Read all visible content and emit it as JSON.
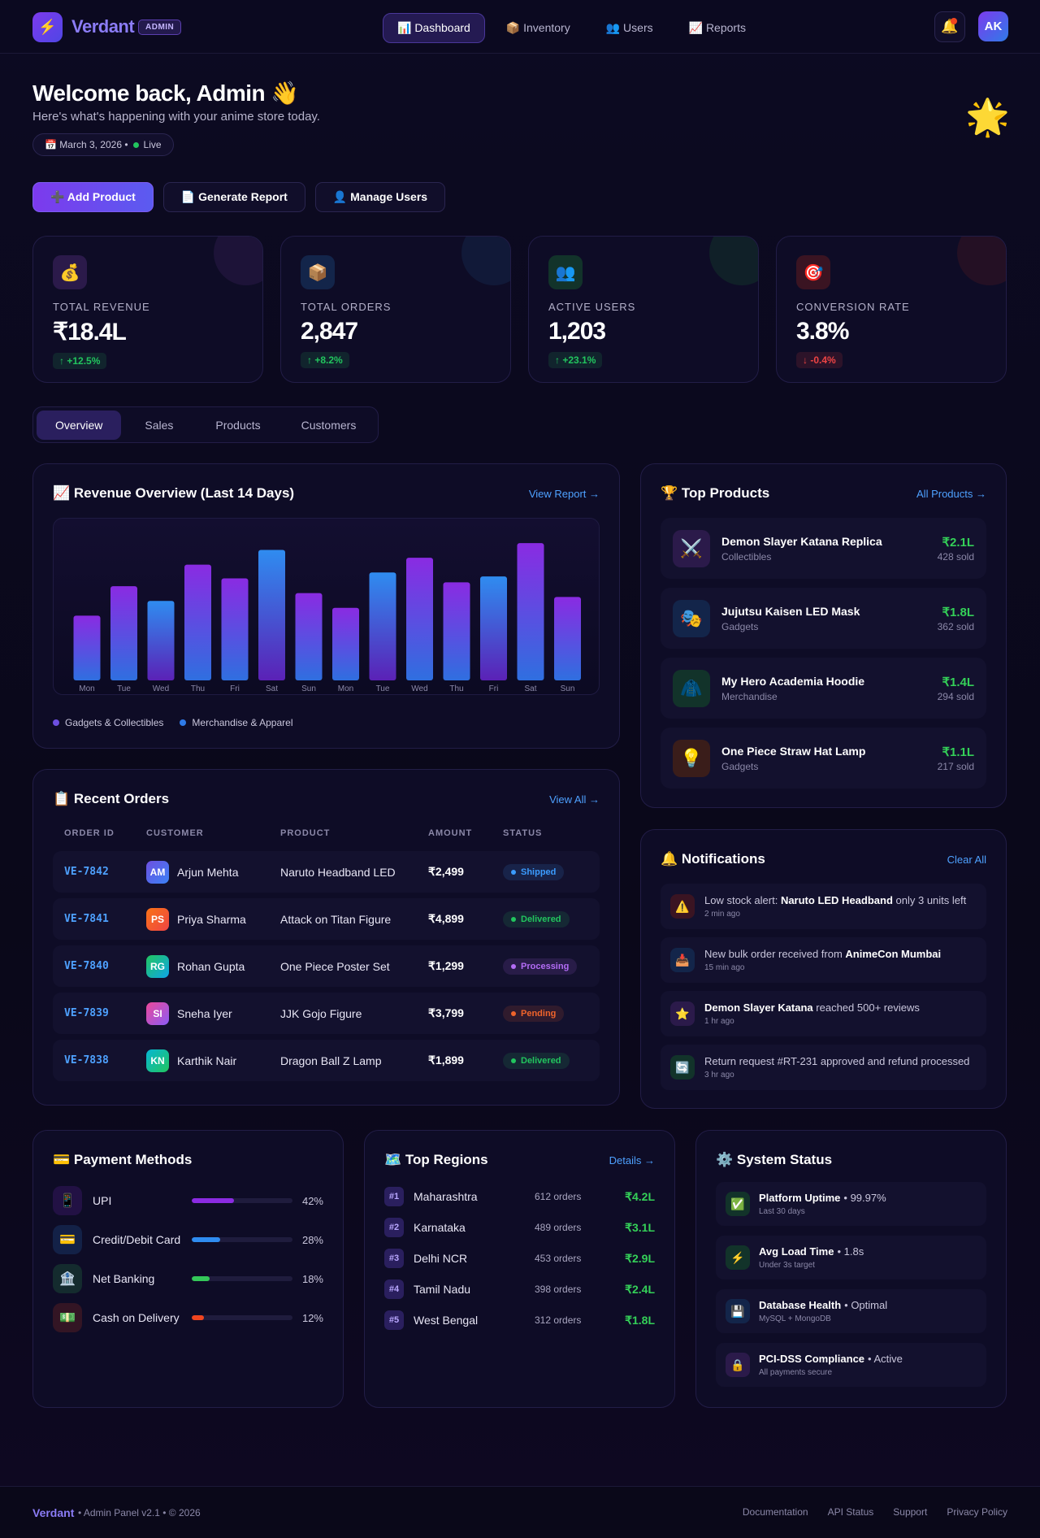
{
  "nav": {
    "logo": "⚡",
    "brand": "Verdant",
    "badge": "ADMIN",
    "links": [
      "📊 Dashboard",
      "📦 Inventory",
      "👥 Users",
      "📈 Reports"
    ],
    "bell": "🔔",
    "avatar": "AK"
  },
  "hero": {
    "title": "Welcome back, Admin 👋",
    "subtitle": "Here's what's happening with your anime store today.",
    "date": "📅 March 3, 2026 •",
    "status": "Live",
    "decoration": "🌟"
  },
  "actions": [
    "➕ Add Product",
    "📄 Generate Report",
    "👤 Manage Users"
  ],
  "stats": [
    {
      "icon": "💰",
      "label": "TOTAL REVENUE",
      "value": "₹18.4L",
      "change": "↑ +12.5%",
      "color": "#22c55e"
    },
    {
      "icon": "📦",
      "label": "TOTAL ORDERS",
      "value": "2,847",
      "change": "↑ +8.2%",
      "color": "#22c55e"
    },
    {
      "icon": "👥",
      "label": "ACTIVE USERS",
      "value": "1,203",
      "change": "↑ +23.1%",
      "color": "#22c55e"
    },
    {
      "icon": "🎯",
      "label": "CONVERSION RATE",
      "value": "3.8%",
      "change": "↓ -0.4%",
      "color": "#ef4444"
    }
  ],
  "tabs": [
    "Overview",
    "Sales",
    "Products",
    "Customers"
  ],
  "revenue": {
    "link": "View Report →"
  },
  "chart_data": {
    "type": "bar",
    "title": "📈 Revenue Overview (Last 14 Days)",
    "categories": [
      "Mon",
      "Tue",
      "Wed",
      "Thu",
      "Fri",
      "Sat",
      "Sun",
      "Mon",
      "Tue",
      "Wed",
      "Thu",
      "Fri",
      "Sat",
      "Sun"
    ],
    "values": [
      66,
      96,
      81,
      118,
      104,
      133,
      89,
      74,
      110,
      125,
      100,
      106,
      140,
      85
    ],
    "ylim": [
      0,
      150
    ],
    "legend": [
      {
        "name": "Gadgets & Collectibles",
        "color": "#6d4fe0"
      },
      {
        "name": "Merchandise & Apparel",
        "color": "#2f7be8"
      }
    ]
  },
  "orders": {
    "title": "📋 Recent Orders",
    "link": "View All →",
    "columns": [
      "ORDER ID",
      "CUSTOMER",
      "PRODUCT",
      "AMOUNT",
      "STATUS"
    ],
    "rows": [
      {
        "id": "VE-7842",
        "initials": "AM",
        "customer": "Arjun Mehta",
        "product": "Naruto Headband LED",
        "amount": "₹2,499",
        "status": "Shipped",
        "color": "#3b9cff"
      },
      {
        "id": "VE-7841",
        "initials": "PS",
        "customer": "Priya Sharma",
        "product": "Attack on Titan Figure",
        "amount": "₹4,899",
        "status": "Delivered",
        "color": "#22c55e"
      },
      {
        "id": "VE-7840",
        "initials": "RG",
        "customer": "Rohan Gupta",
        "product": "One Piece Poster Set",
        "amount": "₹1,299",
        "status": "Processing",
        "color": "#b36cf5"
      },
      {
        "id": "VE-7839",
        "initials": "SI",
        "customer": "Sneha Iyer",
        "product": "JJK Gojo Figure",
        "amount": "₹3,799",
        "status": "Pending",
        "color": "#f0642b"
      },
      {
        "id": "VE-7838",
        "initials": "KN",
        "customer": "Karthik Nair",
        "product": "Dragon Ball Z Lamp",
        "amount": "₹1,899",
        "status": "Delivered",
        "color": "#22c55e"
      }
    ]
  },
  "products": {
    "title": "🏆 Top Products",
    "link": "All Products →",
    "items": [
      {
        "icon": "⚔️",
        "name": "Demon Slayer Katana Replica",
        "category": "Collectibles",
        "revenue": "₹2.1L",
        "sold": "428 sold"
      },
      {
        "icon": "🎭",
        "name": "Jujutsu Kaisen LED Mask",
        "category": "Gadgets",
        "revenue": "₹1.8L",
        "sold": "362 sold"
      },
      {
        "icon": "🧥",
        "name": "My Hero Academia Hoodie",
        "category": "Merchandise",
        "revenue": "₹1.4L",
        "sold": "294 sold"
      },
      {
        "icon": "💡",
        "name": "One Piece Straw Hat Lamp",
        "category": "Gadgets",
        "revenue": "₹1.1L",
        "sold": "217 sold"
      }
    ]
  },
  "notifications": {
    "title": "🔔 Notifications",
    "link": "Clear All",
    "items": [
      {
        "icon": "⚠️",
        "parts": [
          {
            "text": "Low stock alert: "
          },
          {
            "text": "Naruto LED Headband",
            "bold": true
          },
          {
            "text": " only 3 units left"
          }
        ],
        "time": "2 min ago"
      },
      {
        "icon": "📥",
        "parts": [
          {
            "text": "New bulk order received from "
          },
          {
            "text": "AnimeCon Mumbai",
            "bold": true
          }
        ],
        "time": "15 min ago"
      },
      {
        "icon": "⭐",
        "parts": [
          {
            "text": "Demon Slayer Katana",
            "bold": true
          },
          {
            "text": " reached 500+ reviews"
          }
        ],
        "time": "1 hr ago"
      },
      {
        "icon": "🔄",
        "parts": [
          {
            "text": "Return request #RT-231 approved and refund processed"
          }
        ],
        "time": "3 hr ago"
      }
    ]
  },
  "payments": {
    "title": "💳 Payment Methods",
    "items": [
      {
        "icon": "📱",
        "name": "UPI",
        "share": {
          "value": 42,
          "label": "42%"
        },
        "color": "#8b2be2"
      },
      {
        "icon": "💳",
        "name": "Credit/Debit Card",
        "share": {
          "value": 28,
          "label": "28%"
        },
        "color": "#2f8cf0"
      },
      {
        "icon": "🏦",
        "name": "Net Banking",
        "share": {
          "value": 18,
          "label": "18%"
        },
        "color": "#34c759"
      },
      {
        "icon": "💵",
        "name": "Cash on Delivery",
        "share": {
          "value": 12,
          "label": "12%"
        },
        "color": "#f0451f"
      }
    ]
  },
  "regions": {
    "title": "🗺️ Top Regions",
    "link": "Details →",
    "items": [
      {
        "rank": "#1",
        "name": "Maharashtra",
        "orders": "612 orders",
        "revenue": "₹4.2L"
      },
      {
        "rank": "#2",
        "name": "Karnataka",
        "orders": "489 orders",
        "revenue": "₹3.1L"
      },
      {
        "rank": "#3",
        "name": "Delhi NCR",
        "orders": "453 orders",
        "revenue": "₹2.9L"
      },
      {
        "rank": "#4",
        "name": "Tamil Nadu",
        "orders": "398 orders",
        "revenue": "₹2.4L"
      },
      {
        "rank": "#5",
        "name": "West Bengal",
        "orders": "312 orders",
        "revenue": "₹1.8L"
      }
    ]
  },
  "system": {
    "title": "⚙️ System Status",
    "items": [
      {
        "icon": "✅",
        "name": "Platform Uptime",
        "detail": "• 99.97%",
        "note": "Last 30 days"
      },
      {
        "icon": "⚡",
        "name": "Avg Load Time",
        "detail": "• 1.8s",
        "note": "Under 3s target"
      },
      {
        "icon": "💾",
        "name": "Database Health",
        "detail": "• Optimal",
        "note": "MySQL + MongoDB"
      },
      {
        "icon": "🔒",
        "name": "PCI-DSS Compliance",
        "detail": "• Active",
        "note": "All payments secure"
      }
    ]
  },
  "footer": {
    "brand": "Verdant",
    "text": "• Admin Panel v2.1 • © 2026",
    "links": [
      "Documentation",
      "API Status",
      "Support",
      "Privacy Policy"
    ]
  }
}
